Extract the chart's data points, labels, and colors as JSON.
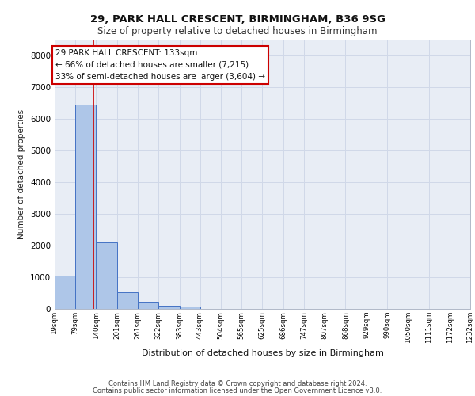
{
  "title1": "29, PARK HALL CRESCENT, BIRMINGHAM, B36 9SG",
  "title2": "Size of property relative to detached houses in Birmingham",
  "xlabel": "Distribution of detached houses by size in Birmingham",
  "ylabel": "Number of detached properties",
  "footer1": "Contains HM Land Registry data © Crown copyright and database right 2024.",
  "footer2": "Contains public sector information licensed under the Open Government Licence v3.0.",
  "property_size": 133,
  "property_label": "29 PARK HALL CRESCENT: 133sqm",
  "annotation_line1": "← 66% of detached houses are smaller (7,215)",
  "annotation_line2": "33% of semi-detached houses are larger (3,604) →",
  "bar_color": "#aec6e8",
  "bar_edge_color": "#4472c4",
  "vline_color": "#cc0000",
  "annotation_box_edge": "#cc0000",
  "annotation_box_face": "#ffffff",
  "bin_edges": [
    19,
    79,
    140,
    201,
    261,
    322,
    383,
    443,
    504,
    565,
    625,
    686,
    747,
    807,
    868,
    929,
    990,
    1050,
    1111,
    1172,
    1232
  ],
  "bar_heights": [
    1050,
    6450,
    2100,
    530,
    220,
    95,
    65,
    0,
    0,
    0,
    0,
    0,
    0,
    0,
    0,
    0,
    0,
    0,
    0,
    0
  ],
  "ylim": [
    0,
    8500
  ],
  "yticks": [
    0,
    1000,
    2000,
    3000,
    4000,
    5000,
    6000,
    7000,
    8000
  ],
  "grid_color": "#d0d8e8",
  "background_color": "#e8edf5",
  "fig_background": "#ffffff"
}
